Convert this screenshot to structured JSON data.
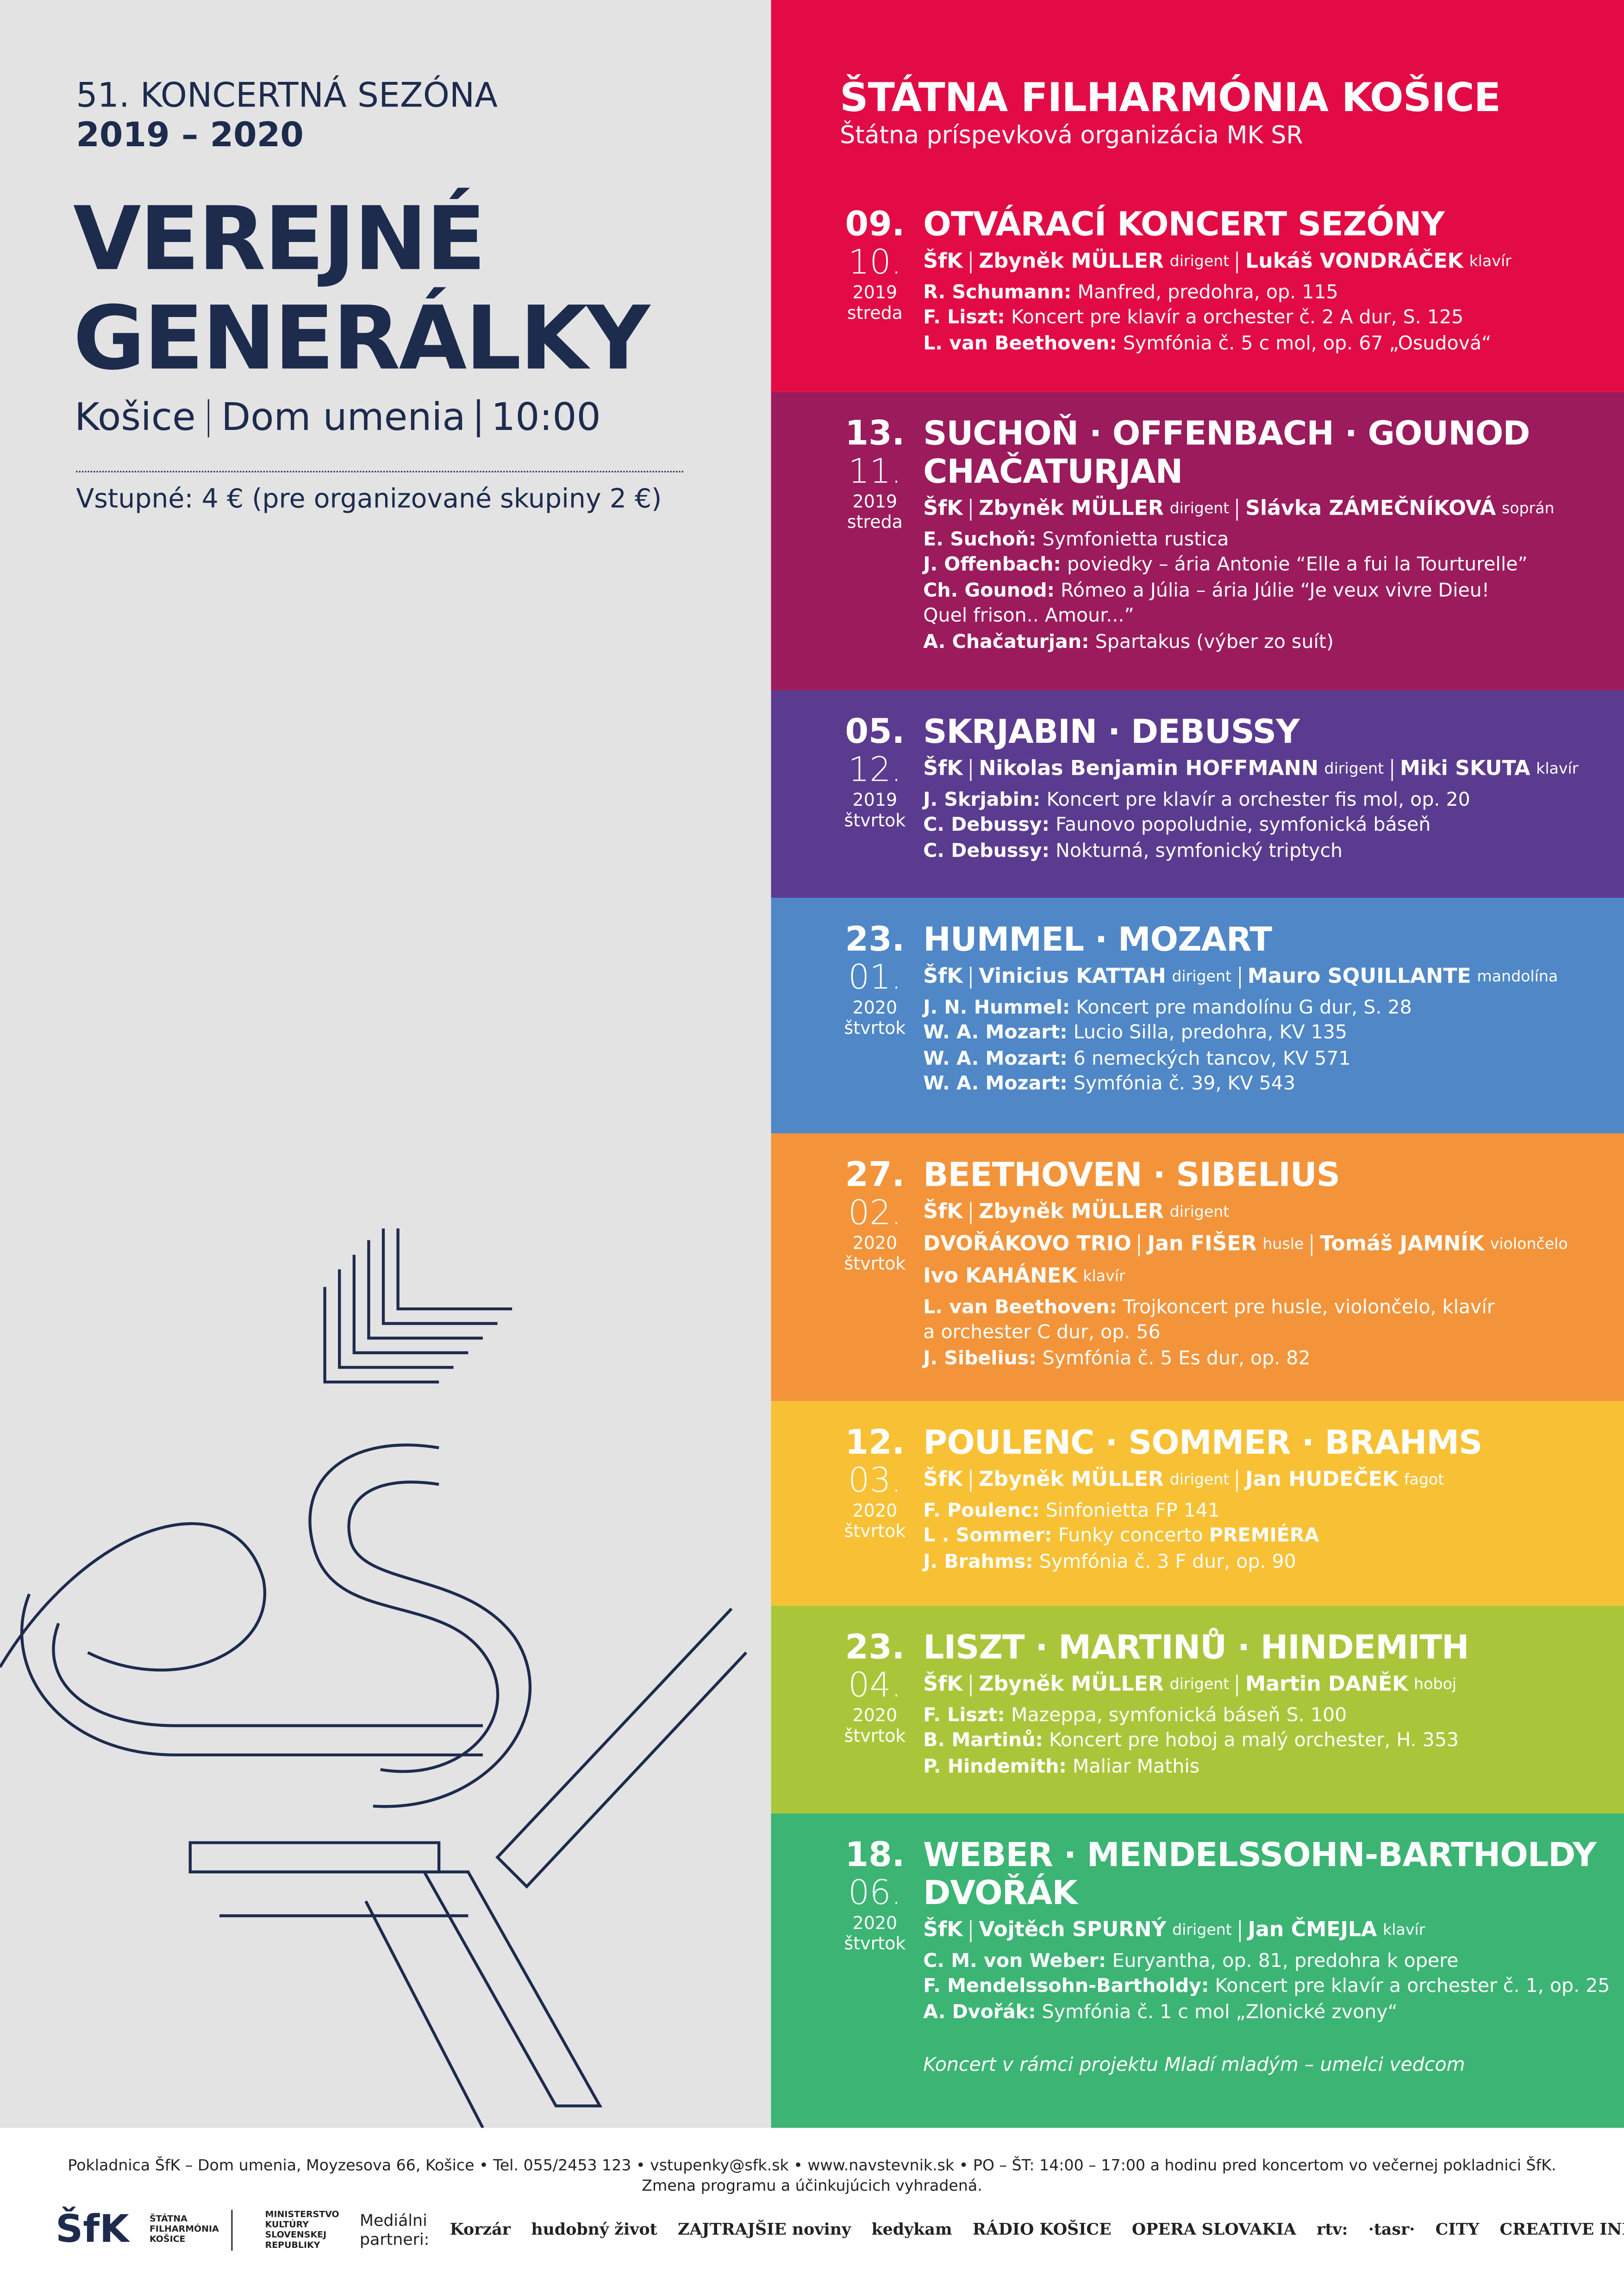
{
  "header": {
    "season": "51. KONCERTNÁ SEZÓNA",
    "years": "2019 – 2020",
    "title": [
      "VEREJNÉ",
      "GENERÁLKY"
    ],
    "venue": [
      "Košice",
      "Dom umenia",
      "10:00"
    ],
    "admission": "Vstupné: 4 € (pre organizované skupiny 2 €)"
  },
  "organizer": {
    "name": "ŠTÁTNA FILHARMÓNIA KOŠICE",
    "subtitle": "Štátna príspevková organizácia MK SR"
  },
  "concerts": [
    {
      "day": "09.",
      "month": "10.",
      "year": "2019",
      "weekday": "streda",
      "color": "#e30b45",
      "title": [
        "OTVÁRACÍ KONCERT SEZÓNY"
      ],
      "performers": [
        [
          {
            "name": "ŠfK"
          },
          {
            "name": "Zbyněk MÜLLER",
            "role": "dirigent"
          },
          {
            "name": "Lukáš VONDRÁČEK",
            "role": "klavír"
          }
        ]
      ],
      "works": [
        {
          "composer": "R. Schumann:",
          "piece": [
            "Manfred, predohra, op. 115"
          ]
        },
        {
          "composer": "F. Liszt:",
          "piece": [
            "Koncert pre klavír a orchester č. 2 A dur, S. 125"
          ]
        },
        {
          "composer": "L. van Beethoven:",
          "piece": [
            "Symfónia č. 5 c mol, op. 67 „Osudová“"
          ]
        }
      ]
    },
    {
      "day": "13.",
      "month": "11.",
      "year": "2019",
      "weekday": "streda",
      "color": "#9b1b5c",
      "title": [
        "SUCHOŇ · OFFENBACH · GOUNOD",
        "CHAČATURJAN"
      ],
      "performers": [
        [
          {
            "name": "ŠfK"
          },
          {
            "name": "Zbyněk MÜLLER",
            "role": "dirigent"
          },
          {
            "name": "Slávka ZÁMEČNÍKOVÁ",
            "role": "soprán"
          }
        ]
      ],
      "works": [
        {
          "composer": "E. Suchoň:",
          "piece": [
            "Symfonietta rustica"
          ]
        },
        {
          "composer": "J. Offenbach:",
          "piece": [
            "poviedky – ária Antonie “Elle a fui la Tourturelle”"
          ]
        },
        {
          "composer": "Ch. Gounod:",
          "piece": [
            "Rómeo a Júlia – ária Júlie “Je veux vivre Dieu!",
            "Quel frison.. Amour...”"
          ]
        },
        {
          "composer": "A. Chačaturjan:",
          "piece": [
            "Spartakus (výber zo suít)"
          ]
        }
      ]
    },
    {
      "day": "05.",
      "month": "12.",
      "year": "2019",
      "weekday": "štvrtok",
      "color": "#5b3b8f",
      "title": [
        "SKRJABIN · DEBUSSY"
      ],
      "performers": [
        [
          {
            "name": "ŠfK"
          },
          {
            "name": "Nikolas Benjamin HOFFMANN",
            "role": "dirigent"
          },
          {
            "name": "Miki SKUTA",
            "role": "klavír"
          }
        ]
      ],
      "works": [
        {
          "composer": "J. Skrjabin:",
          "piece": [
            "Koncert pre klavír a orchester fis mol, op. 20"
          ]
        },
        {
          "composer": "C. Debussy:",
          "piece": [
            "Faunovo popoludnie, symfonická báseň"
          ]
        },
        {
          "composer": "C. Debussy:",
          "piece": [
            "Nokturná, symfonický triptych"
          ]
        }
      ]
    },
    {
      "day": "23.",
      "month": "01.",
      "year": "2020",
      "weekday": "štvrtok",
      "color": "#4f87c7",
      "title": [
        "HUMMEL · MOZART"
      ],
      "performers": [
        [
          {
            "name": "ŠfK"
          },
          {
            "name": "Vinicius KATTAH",
            "role": "dirigent"
          },
          {
            "name": "Mauro SQUILLANTE",
            "role": "mandolína"
          }
        ]
      ],
      "works": [
        {
          "composer": "J. N. Hummel:",
          "piece": [
            "Koncert pre mandolínu G dur, S. 28"
          ]
        },
        {
          "composer": "W. A. Mozart:",
          "piece": [
            "Lucio Silla, predohra, KV 135"
          ]
        },
        {
          "composer": "W. A. Mozart:",
          "piece": [
            "6 nemeckých tancov, KV 571"
          ]
        },
        {
          "composer": "W. A. Mozart:",
          "piece": [
            "Symfónia č. 39, KV 543"
          ]
        }
      ]
    },
    {
      "day": "27.",
      "month": "02.",
      "year": "2020",
      "weekday": "štvrtok",
      "color": "#f3943a",
      "title": [
        "BEETHOVEN · SIBELIUS"
      ],
      "performers": [
        [
          {
            "name": "ŠfK"
          },
          {
            "name": "Zbyněk MÜLLER",
            "role": "dirigent"
          }
        ],
        [
          {
            "name": "DVOŘÁKOVO TRIO"
          },
          {
            "name": "Jan FIŠER",
            "role": "husle"
          },
          {
            "name": "Tomáš JAMNÍK",
            "role": "violončelo"
          }
        ],
        [
          {
            "name": "Ivo KAHÁNEK",
            "role": "klavír"
          }
        ]
      ],
      "works": [
        {
          "composer": "L. van Beethoven:",
          "piece": [
            "Trojkoncert pre husle, violončelo, klavír",
            "a orchester C dur, op. 56"
          ]
        },
        {
          "composer": "J. Sibelius:",
          "piece": [
            "Symfónia č. 5 Es dur, op. 82"
          ]
        }
      ]
    },
    {
      "day": "12.",
      "month": "03.",
      "year": "2020",
      "weekday": "štvrtok",
      "color": "#f8c135",
      "title": [
        "POULENC · SOMMER · BRAHMS"
      ],
      "performers": [
        [
          {
            "name": "ŠfK"
          },
          {
            "name": "Zbyněk MÜLLER",
            "role": "dirigent"
          },
          {
            "name": "Jan HUDEČEK",
            "role": "fagot"
          }
        ]
      ],
      "works": [
        {
          "composer": "F. Poulenc:",
          "piece": [
            "Sinfonietta FP 141"
          ]
        },
        {
          "composer": "L . Sommer:",
          "piece": [
            "Funky concerto"
          ],
          "highlight": "PREMIÉRA"
        },
        {
          "composer": "J. Brahms:",
          "piece": [
            "Symfónia č. 3 F dur, op. 90"
          ]
        }
      ]
    },
    {
      "day": "23.",
      "month": "04.",
      "year": "2020",
      "weekday": "štvrtok",
      "color": "#a9c63b",
      "title": [
        "LISZT · MARTINŮ · HINDEMITH"
      ],
      "performers": [
        [
          {
            "name": "ŠfK"
          },
          {
            "name": "Zbyněk MÜLLER",
            "role": "dirigent"
          },
          {
            "name": "Martin DANĚK",
            "role": "hoboj"
          }
        ]
      ],
      "works": [
        {
          "composer": "F. Liszt:",
          "piece": [
            "Mazeppa, symfonická báseň S. 100"
          ]
        },
        {
          "composer": "B. Martinů:",
          "piece": [
            "Koncert pre hoboj a malý orchester, H. 353"
          ]
        },
        {
          "composer": "P. Hindemith:",
          "piece": [
            "Maliar Mathis"
          ]
        }
      ]
    },
    {
      "day": "18.",
      "month": "06.",
      "year": "2020",
      "weekday": "štvrtok",
      "color": "#3cb474",
      "title": [
        "WEBER · MENDELSSOHN-BARTHOLDY",
        "DVOŘÁK"
      ],
      "performers": [
        [
          {
            "name": "ŠfK"
          },
          {
            "name": "Vojtěch SPURNÝ",
            "role": "dirigent"
          },
          {
            "name": "Jan ČMEJLA",
            "role": "klavír"
          }
        ]
      ],
      "works": [
        {
          "composer": "C. M. von Weber:",
          "piece": [
            "Euryantha, op. 81, predohra k opere"
          ]
        },
        {
          "composer": "F. Mendelssohn-Bartholdy:",
          "piece": [
            "Koncert pre klavír a orchester č. 1, op. 25"
          ]
        },
        {
          "composer": "A. Dvořák:",
          "piece": [
            "Symfónia č. 1 c mol „Zlonické zvony“"
          ]
        }
      ],
      "note": "Koncert v rámci projektu Mladí mladým – umelci vedcom"
    }
  ],
  "footer": {
    "info": "Pokladnica ŠfK – Dom umenia, Moyzesova 66, Košice • Tel. 055/2453 123 • vstupenky@sfk.sk • www.navstevnik.sk • PO – ŠT: 14:00 – 17:00 a hodinu pred koncertom vo večernej pokladnici ŠfK.",
    "disclaimer": "Zmena programu a účinkujúcich vyhradená.",
    "logo": "ŠfK",
    "logo_text": "ŠTÁTNA FILHARMÓNIA KOŠICE",
    "ministry": "MINISTERSTVO KULTÚRY SLOVENSKEJ REPUBLIKY",
    "partners_label": "Mediálni partneri:",
    "partners": [
      "Korzár",
      "hudobný život",
      "ZAJTRAJŠIE noviny",
      "kedykam",
      "RÁDIO KOŠICE",
      "OPERA SLOVAKIA",
      "rtv:",
      "·tasr·",
      "CITY",
      "CREATIVE INDUSTRY"
    ]
  }
}
